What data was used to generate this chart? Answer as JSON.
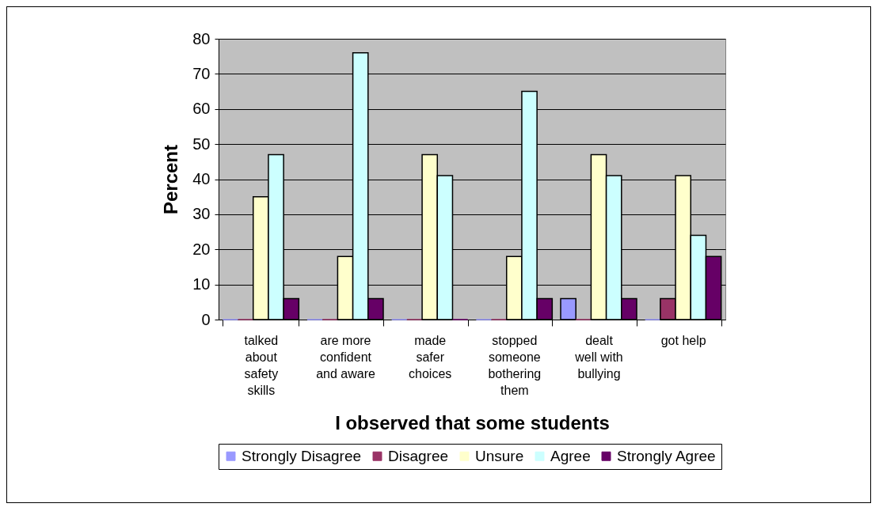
{
  "chart_data": {
    "type": "bar",
    "xlabel": "I observed that some students",
    "ylabel": "Percent",
    "categories": [
      "talked about safety skills",
      "are more confident and aware",
      "made safer choices",
      "stopped someone bothering them",
      "dealt well with bullying",
      "got help"
    ],
    "series": [
      {
        "name": "Strongly Disagree",
        "color": "#9999ff",
        "values": [
          0,
          0,
          0,
          0,
          6,
          0
        ]
      },
      {
        "name": "Disagree",
        "color": "#993366",
        "values": [
          0,
          0,
          0,
          0,
          0,
          6
        ]
      },
      {
        "name": "Unsure",
        "color": "#ffffcc",
        "values": [
          35,
          18,
          47,
          18,
          47,
          41
        ]
      },
      {
        "name": "Agree",
        "color": "#ccffff",
        "values": [
          47,
          76,
          41,
          65,
          41,
          24
        ]
      },
      {
        "name": "Strongly Agree",
        "color": "#660066",
        "values": [
          6,
          6,
          0,
          6,
          6,
          18
        ]
      }
    ],
    "ylim": [
      0,
      80
    ],
    "yticks": [
      0,
      10,
      20,
      30,
      40,
      50,
      60,
      70,
      80
    ],
    "grid": "y",
    "legend": "bottom"
  }
}
